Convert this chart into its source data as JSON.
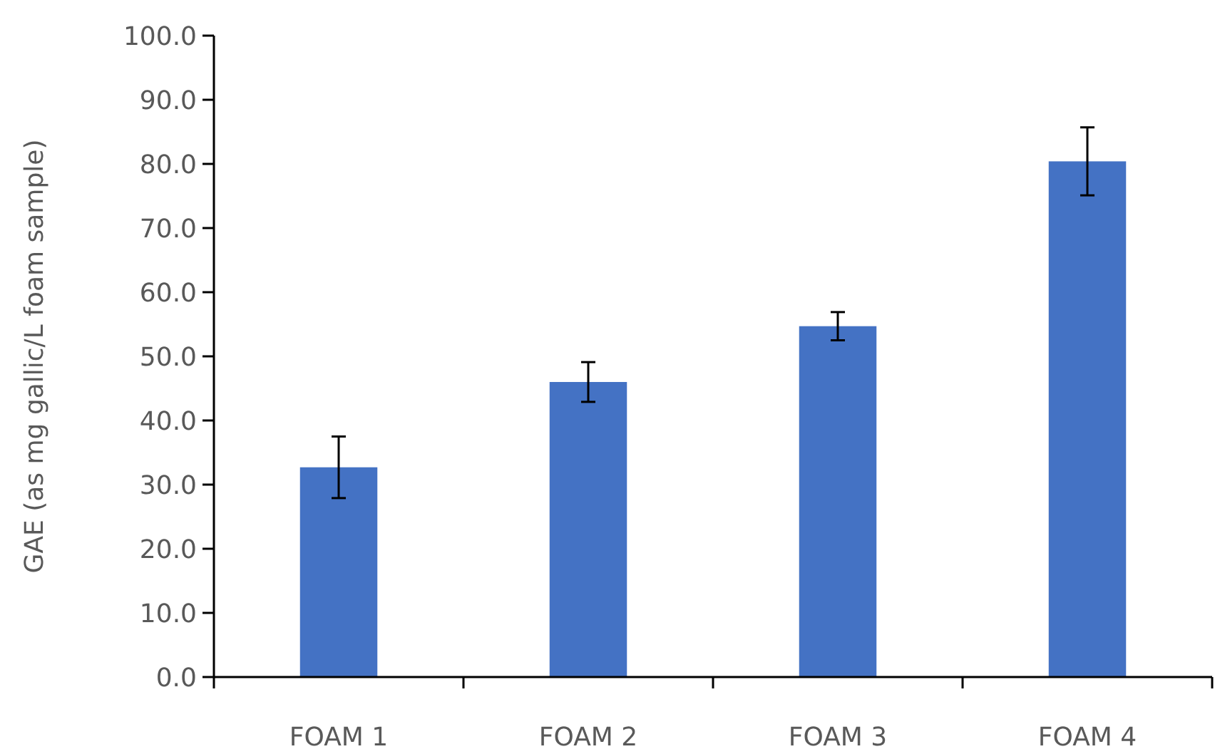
{
  "chart_data": {
    "type": "bar",
    "ylabel": "GAE (as mg gallic/L foam sample)",
    "categories": [
      "FOAM 1",
      "FOAM 2",
      "FOAM 3",
      "FOAM 4"
    ],
    "values": [
      32.7,
      46.0,
      54.7,
      80.4
    ],
    "errors": [
      4.8,
      3.1,
      2.2,
      5.3
    ],
    "color": "#4472c4",
    "ylim": [
      0,
      100
    ],
    "yticks": [
      {
        "value": 0,
        "label": "0.0"
      },
      {
        "value": 10,
        "label": "10.0"
      },
      {
        "value": 20,
        "label": "20.0"
      },
      {
        "value": 30,
        "label": "30.0"
      },
      {
        "value": 40,
        "label": "40.0"
      },
      {
        "value": 50,
        "label": "50.0"
      },
      {
        "value": 60,
        "label": "60.0"
      },
      {
        "value": 70,
        "label": "70.0"
      },
      {
        "value": 80,
        "label": "80.0"
      },
      {
        "value": 90,
        "label": "90.0"
      },
      {
        "value": 100,
        "label": "100.0"
      }
    ],
    "grid": false
  }
}
